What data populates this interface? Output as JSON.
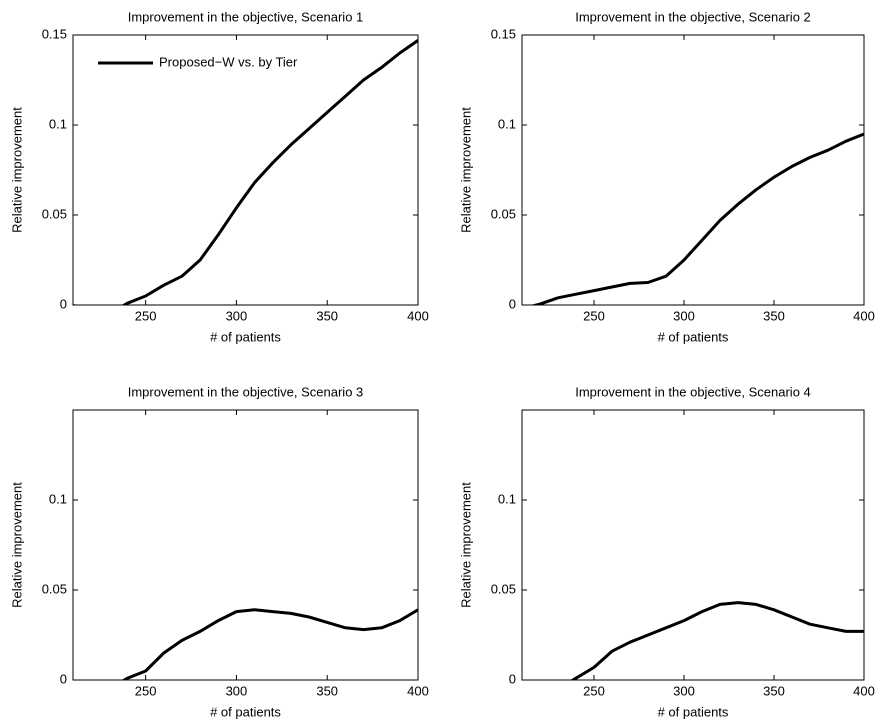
{
  "chart_data": [
    {
      "type": "line",
      "title": "Improvement in the objective, Scenario 1",
      "xlabel": "# of patients",
      "ylabel": "Relative improvement",
      "x": [
        210,
        220,
        230,
        240,
        250,
        260,
        270,
        280,
        290,
        300,
        310,
        320,
        330,
        340,
        350,
        360,
        370,
        380,
        390,
        400
      ],
      "series": [
        {
          "name": "Proposed−W vs. by Tier",
          "color": "#000000",
          "values": [
            0,
            -0.01,
            -0.005,
            0.001,
            0.005,
            0.011,
            0.016,
            0.025,
            0.039,
            0.054,
            0.068,
            0.079,
            0.089,
            0.098,
            0.107,
            0.116,
            0.125,
            0.132,
            0.14,
            0.147
          ]
        }
      ],
      "xlim": [
        210,
        400
      ],
      "ylim": [
        0,
        0.15
      ],
      "xticks": [
        250,
        300,
        350,
        400
      ],
      "yticks": [
        0,
        0.05,
        0.1,
        0.15
      ],
      "legend": "upper left"
    },
    {
      "type": "line",
      "title": "Improvement in the objective, Scenario 2",
      "xlabel": "# of patients",
      "ylabel": "Relative improvement",
      "x": [
        210,
        220,
        230,
        240,
        250,
        260,
        270,
        280,
        290,
        300,
        310,
        320,
        330,
        340,
        350,
        360,
        370,
        380,
        390,
        400
      ],
      "series": [
        {
          "color": "#000000",
          "values": [
            -0.002,
            0.0005,
            0.004,
            0.006,
            0.008,
            0.01,
            0.012,
            0.0125,
            0.016,
            0.025,
            0.036,
            0.047,
            0.056,
            0.064,
            0.071,
            0.077,
            0.082,
            0.086,
            0.091,
            0.095
          ]
        }
      ],
      "xlim": [
        210,
        400
      ],
      "ylim": [
        0,
        0.15
      ],
      "xticks": [
        250,
        300,
        350,
        400
      ],
      "yticks": [
        0,
        0.05,
        0.1,
        0.15
      ]
    },
    {
      "type": "line",
      "title": "Improvement in the objective, Scenario 3",
      "xlabel": "# of patients",
      "ylabel": "Relative improvement",
      "x": [
        210,
        220,
        230,
        240,
        250,
        260,
        270,
        280,
        290,
        300,
        310,
        320,
        330,
        340,
        350,
        360,
        370,
        380,
        390,
        400
      ],
      "series": [
        {
          "color": "#000000",
          "values": [
            -0.01,
            -0.01,
            -0.005,
            0.001,
            0.005,
            0.015,
            0.022,
            0.027,
            0.033,
            0.038,
            0.039,
            0.038,
            0.037,
            0.035,
            0.032,
            0.029,
            0.028,
            0.029,
            0.033,
            0.039
          ]
        }
      ],
      "xlim": [
        210,
        400
      ],
      "ylim": [
        0,
        0.15
      ],
      "xticks": [
        250,
        300,
        350,
        400
      ],
      "yticks": [
        0,
        0.05,
        0.1
      ]
    },
    {
      "type": "line",
      "title": "Improvement in the objective, Scenario 4",
      "xlabel": "# of patients",
      "ylabel": "Relative improvement",
      "x": [
        210,
        220,
        230,
        240,
        250,
        260,
        270,
        280,
        290,
        300,
        310,
        320,
        330,
        340,
        350,
        360,
        370,
        380,
        390,
        400
      ],
      "series": [
        {
          "color": "#000000",
          "values": [
            -0.01,
            -0.01,
            -0.005,
            0.001,
            0.007,
            0.016,
            0.021,
            0.025,
            0.029,
            0.033,
            0.038,
            0.042,
            0.043,
            0.042,
            0.039,
            0.035,
            0.031,
            0.029,
            0.027,
            0.027
          ]
        }
      ],
      "xlim": [
        210,
        400
      ],
      "ylim": [
        0,
        0.15
      ],
      "xticks": [
        250,
        300,
        350,
        400
      ],
      "yticks": [
        0,
        0.05,
        0.1
      ]
    }
  ]
}
